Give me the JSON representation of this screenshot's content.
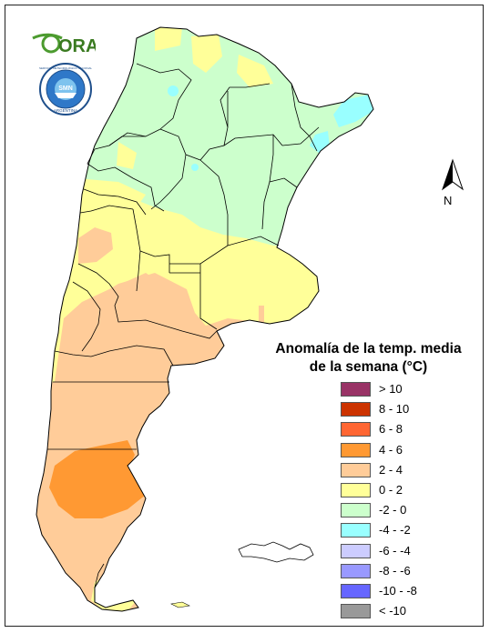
{
  "logo": {
    "ora_text": "ORA",
    "smn_ring_text": "SERVICIO METEOROLÓGICO NACIONAL",
    "smn_bottom_text": "ARGENTINA",
    "smn_center_text": "SMN"
  },
  "north_arrow": {
    "label": "N"
  },
  "legend": {
    "title_line1": "Anomalía de la temp. media",
    "title_line2": "de la semana (°C)",
    "classes": [
      {
        "label": "> 10",
        "color": "#993366"
      },
      {
        "label": "8 - 10",
        "color": "#cc3300"
      },
      {
        "label": "6 - 8",
        "color": "#ff6633"
      },
      {
        "label": "4 - 6",
        "color": "#ff9933"
      },
      {
        "label": "2 - 4",
        "color": "#ffcc99"
      },
      {
        "label": "0 - 2",
        "color": "#ffff99"
      },
      {
        "label": "-2 - 0",
        "color": "#ccffcc"
      },
      {
        "label": "-4 - -2",
        "color": "#99ffff"
      },
      {
        "label": "-6 - -4",
        "color": "#ccccff"
      },
      {
        "label": "-8 - -6",
        "color": "#9999ff"
      },
      {
        "label": "-10 - -8",
        "color": "#6666ff"
      },
      {
        "label": "< -10",
        "color": "#999999"
      }
    ]
  }
}
